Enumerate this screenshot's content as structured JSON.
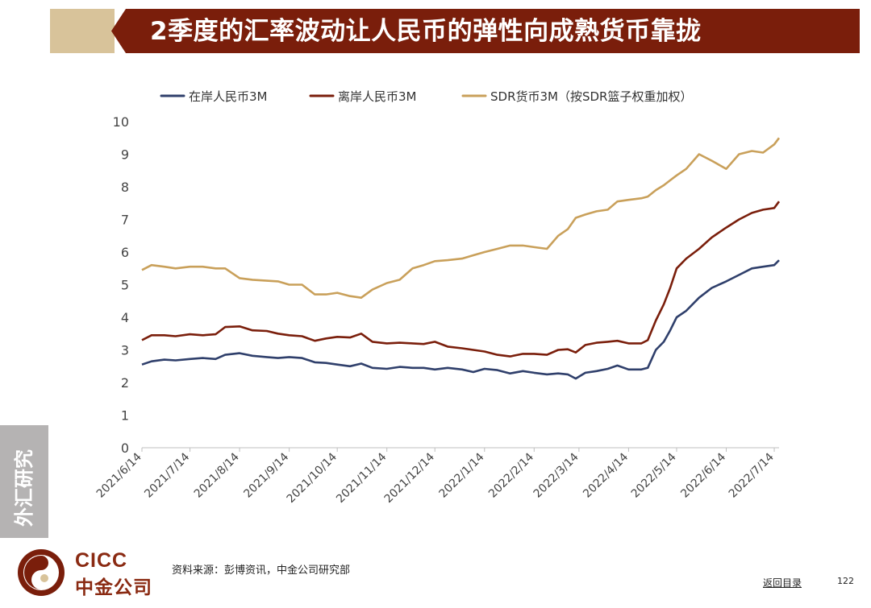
{
  "header": {
    "title": "2季度的汇率波动让人民币的弹性向成熟货币靠拢"
  },
  "side_tab": {
    "label": "外汇研究"
  },
  "footer": {
    "logo_en": "CICC",
    "logo_cn": "中金公司",
    "source": "资料来源：彭博资讯，中金公司研究部",
    "back_link": "返回目录",
    "page_number": "122"
  },
  "colors": {
    "title_bg": "#7a1e0b",
    "title_accent": "#d8c39a",
    "onshore": "#2f3f6b",
    "offshore": "#7a1e0b",
    "sdr": "#c9a05a"
  },
  "chart_data": {
    "type": "line",
    "title": "",
    "xlabel": "",
    "ylabel": "",
    "ylim": [
      0,
      10
    ],
    "yticks": [
      0,
      1,
      2,
      3,
      4,
      5,
      6,
      7,
      8,
      9,
      10
    ],
    "xticks": [
      "2021/6/14",
      "2021/7/14",
      "2021/8/14",
      "2021/9/14",
      "2021/10/14",
      "2021/11/14",
      "2021/12/14",
      "2022/1/14",
      "2022/2/14",
      "2022/3/14",
      "2022/4/14",
      "2022/5/14",
      "2022/6/14",
      "2022/7/14"
    ],
    "legend_position": "top",
    "grid": false,
    "series": [
      {
        "name": "在岸人民币3M",
        "color": "#2f3f6b",
        "points": [
          [
            "2021/6/14",
            2.55
          ],
          [
            "2021/6/20",
            2.65
          ],
          [
            "2021/6/28",
            2.7
          ],
          [
            "2021/7/5",
            2.68
          ],
          [
            "2021/7/14",
            2.72
          ],
          [
            "2021/7/22",
            2.75
          ],
          [
            "2021/7/30",
            2.72
          ],
          [
            "2021/8/5",
            2.85
          ],
          [
            "2021/8/14",
            2.9
          ],
          [
            "2021/8/22",
            2.82
          ],
          [
            "2021/8/31",
            2.78
          ],
          [
            "2021/9/7",
            2.75
          ],
          [
            "2021/9/14",
            2.78
          ],
          [
            "2021/9/22",
            2.75
          ],
          [
            "2021/9/30",
            2.62
          ],
          [
            "2021/10/7",
            2.6
          ],
          [
            "2021/10/14",
            2.55
          ],
          [
            "2021/10/22",
            2.5
          ],
          [
            "2021/10/29",
            2.58
          ],
          [
            "2021/11/5",
            2.45
          ],
          [
            "2021/11/14",
            2.42
          ],
          [
            "2021/11/22",
            2.48
          ],
          [
            "2021/11/30",
            2.45
          ],
          [
            "2021/12/7",
            2.45
          ],
          [
            "2021/12/14",
            2.4
          ],
          [
            "2021/12/22",
            2.45
          ],
          [
            "2021/12/31",
            2.4
          ],
          [
            "2022/1/7",
            2.32
          ],
          [
            "2022/1/14",
            2.42
          ],
          [
            "2022/1/22",
            2.38
          ],
          [
            "2022/1/30",
            2.28
          ],
          [
            "2022/2/7",
            2.35
          ],
          [
            "2022/2/14",
            2.3
          ],
          [
            "2022/2/22",
            2.25
          ],
          [
            "2022/3/1",
            2.28
          ],
          [
            "2022/3/7",
            2.25
          ],
          [
            "2022/3/12",
            2.12
          ],
          [
            "2022/3/18",
            2.3
          ],
          [
            "2022/3/25",
            2.35
          ],
          [
            "2022/4/1",
            2.42
          ],
          [
            "2022/4/7",
            2.52
          ],
          [
            "2022/4/14",
            2.4
          ],
          [
            "2022/4/22",
            2.4
          ],
          [
            "2022/4/26",
            2.45
          ],
          [
            "2022/5/1",
            3.0
          ],
          [
            "2022/5/6",
            3.25
          ],
          [
            "2022/5/10",
            3.6
          ],
          [
            "2022/5/14",
            4.0
          ],
          [
            "2022/5/20",
            4.2
          ],
          [
            "2022/5/28",
            4.6
          ],
          [
            "2022/6/5",
            4.9
          ],
          [
            "2022/6/14",
            5.1
          ],
          [
            "2022/6/22",
            5.3
          ],
          [
            "2022/6/30",
            5.5
          ],
          [
            "2022/7/7",
            5.55
          ],
          [
            "2022/7/14",
            5.6
          ],
          [
            "2022/7/17",
            5.75
          ]
        ]
      },
      {
        "name": "离岸人民币3M",
        "color": "#7a1e0b",
        "points": [
          [
            "2021/6/14",
            3.3
          ],
          [
            "2021/6/20",
            3.45
          ],
          [
            "2021/6/28",
            3.45
          ],
          [
            "2021/7/5",
            3.42
          ],
          [
            "2021/7/14",
            3.48
          ],
          [
            "2021/7/22",
            3.45
          ],
          [
            "2021/7/30",
            3.48
          ],
          [
            "2021/8/5",
            3.7
          ],
          [
            "2021/8/14",
            3.72
          ],
          [
            "2021/8/22",
            3.6
          ],
          [
            "2021/8/31",
            3.58
          ],
          [
            "2021/9/7",
            3.5
          ],
          [
            "2021/9/14",
            3.45
          ],
          [
            "2021/9/22",
            3.42
          ],
          [
            "2021/9/30",
            3.28
          ],
          [
            "2021/10/7",
            3.35
          ],
          [
            "2021/10/14",
            3.4
          ],
          [
            "2021/10/22",
            3.38
          ],
          [
            "2021/10/29",
            3.5
          ],
          [
            "2021/11/5",
            3.25
          ],
          [
            "2021/11/14",
            3.2
          ],
          [
            "2021/11/22",
            3.22
          ],
          [
            "2021/11/30",
            3.2
          ],
          [
            "2021/12/7",
            3.18
          ],
          [
            "2021/12/14",
            3.25
          ],
          [
            "2021/12/22",
            3.1
          ],
          [
            "2021/12/31",
            3.05
          ],
          [
            "2022/1/7",
            3.0
          ],
          [
            "2022/1/14",
            2.95
          ],
          [
            "2022/1/22",
            2.85
          ],
          [
            "2022/1/30",
            2.8
          ],
          [
            "2022/2/7",
            2.88
          ],
          [
            "2022/2/14",
            2.88
          ],
          [
            "2022/2/22",
            2.85
          ],
          [
            "2022/3/1",
            3.0
          ],
          [
            "2022/3/7",
            3.02
          ],
          [
            "2022/3/12",
            2.92
          ],
          [
            "2022/3/18",
            3.15
          ],
          [
            "2022/3/25",
            3.22
          ],
          [
            "2022/4/1",
            3.25
          ],
          [
            "2022/4/7",
            3.28
          ],
          [
            "2022/4/14",
            3.2
          ],
          [
            "2022/4/22",
            3.2
          ],
          [
            "2022/4/26",
            3.3
          ],
          [
            "2022/5/1",
            3.9
          ],
          [
            "2022/5/6",
            4.4
          ],
          [
            "2022/5/10",
            4.9
          ],
          [
            "2022/5/14",
            5.5
          ],
          [
            "2022/5/20",
            5.8
          ],
          [
            "2022/5/28",
            6.1
          ],
          [
            "2022/6/5",
            6.45
          ],
          [
            "2022/6/14",
            6.75
          ],
          [
            "2022/6/22",
            7.0
          ],
          [
            "2022/6/30",
            7.2
          ],
          [
            "2022/7/7",
            7.3
          ],
          [
            "2022/7/14",
            7.35
          ],
          [
            "2022/7/17",
            7.55
          ]
        ]
      },
      {
        "name": "SDR货币3M（按SDR篮子权重加权）",
        "color": "#c9a05a",
        "points": [
          [
            "2021/6/14",
            5.45
          ],
          [
            "2021/6/20",
            5.6
          ],
          [
            "2021/6/28",
            5.55
          ],
          [
            "2021/7/5",
            5.5
          ],
          [
            "2021/7/14",
            5.55
          ],
          [
            "2021/7/22",
            5.55
          ],
          [
            "2021/7/30",
            5.5
          ],
          [
            "2021/8/5",
            5.5
          ],
          [
            "2021/8/14",
            5.2
          ],
          [
            "2021/8/22",
            5.15
          ],
          [
            "2021/8/31",
            5.12
          ],
          [
            "2021/9/7",
            5.1
          ],
          [
            "2021/9/14",
            5.0
          ],
          [
            "2021/9/22",
            5.0
          ],
          [
            "2021/9/30",
            4.7
          ],
          [
            "2021/10/7",
            4.7
          ],
          [
            "2021/10/14",
            4.75
          ],
          [
            "2021/10/22",
            4.65
          ],
          [
            "2021/10/29",
            4.6
          ],
          [
            "2021/11/5",
            4.85
          ],
          [
            "2021/11/14",
            5.05
          ],
          [
            "2021/11/22",
            5.15
          ],
          [
            "2021/11/30",
            5.5
          ],
          [
            "2021/12/7",
            5.6
          ],
          [
            "2021/12/14",
            5.72
          ],
          [
            "2021/12/22",
            5.75
          ],
          [
            "2021/12/31",
            5.8
          ],
          [
            "2022/1/7",
            5.9
          ],
          [
            "2022/1/14",
            6.0
          ],
          [
            "2022/1/22",
            6.1
          ],
          [
            "2022/1/30",
            6.2
          ],
          [
            "2022/2/7",
            6.2
          ],
          [
            "2022/2/14",
            6.15
          ],
          [
            "2022/2/22",
            6.1
          ],
          [
            "2022/3/1",
            6.5
          ],
          [
            "2022/3/7",
            6.7
          ],
          [
            "2022/3/12",
            7.05
          ],
          [
            "2022/3/18",
            7.15
          ],
          [
            "2022/3/25",
            7.25
          ],
          [
            "2022/4/1",
            7.3
          ],
          [
            "2022/4/7",
            7.55
          ],
          [
            "2022/4/14",
            7.6
          ],
          [
            "2022/4/22",
            7.65
          ],
          [
            "2022/4/26",
            7.7
          ],
          [
            "2022/5/1",
            7.9
          ],
          [
            "2022/5/6",
            8.05
          ],
          [
            "2022/5/10",
            8.2
          ],
          [
            "2022/5/14",
            8.35
          ],
          [
            "2022/5/20",
            8.55
          ],
          [
            "2022/5/28",
            9.0
          ],
          [
            "2022/6/5",
            8.8
          ],
          [
            "2022/6/14",
            8.55
          ],
          [
            "2022/6/22",
            9.0
          ],
          [
            "2022/6/30",
            9.1
          ],
          [
            "2022/7/7",
            9.05
          ],
          [
            "2022/7/14",
            9.3
          ],
          [
            "2022/7/17",
            9.5
          ]
        ]
      }
    ]
  }
}
